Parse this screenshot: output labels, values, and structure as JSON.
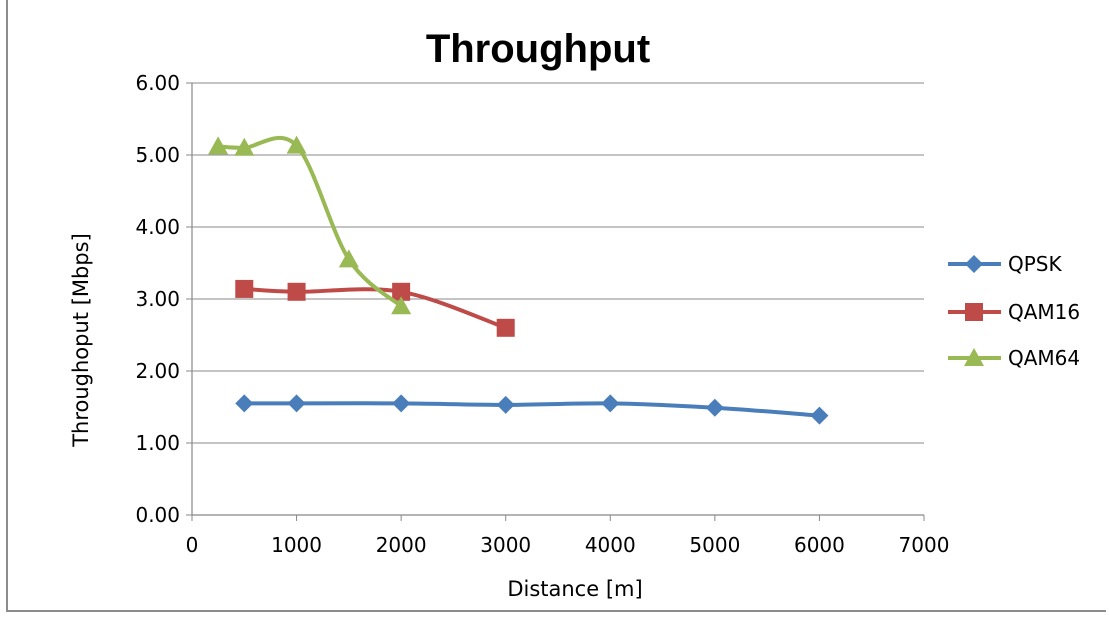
{
  "chart_data": {
    "type": "line",
    "title": "Throughput",
    "xlabel": "Distance [m]",
    "ylabel": "Throughoput  [Mbps]",
    "xlim": [
      0,
      7000
    ],
    "ylim": [
      0,
      6
    ],
    "x_ticks": [
      "0",
      "1000",
      "2000",
      "3000",
      "4000",
      "5000",
      "6000",
      "7000"
    ],
    "y_ticks": [
      "0.00",
      "1.00",
      "2.00",
      "3.00",
      "4.00",
      "5.00",
      "6.00"
    ],
    "grid": "horizontal",
    "legend_position": "right",
    "series": [
      {
        "name": "QPSK",
        "color": "#4a7ebb",
        "marker": "diamond",
        "x": [
          500,
          1000,
          2000,
          3000,
          4000,
          5000,
          6000
        ],
        "y": [
          1.55,
          1.55,
          1.55,
          1.53,
          1.55,
          1.49,
          1.38
        ]
      },
      {
        "name": "QAM16",
        "color": "#be4b48",
        "marker": "square",
        "x": [
          500,
          1000,
          2000,
          3000
        ],
        "y": [
          3.14,
          3.1,
          3.1,
          2.6
        ]
      },
      {
        "name": "QAM64",
        "color": "#98b954",
        "marker": "triangle",
        "x": [
          250,
          500,
          1000,
          1500,
          2000
        ],
        "y": [
          5.12,
          5.1,
          5.13,
          3.55,
          2.9
        ]
      }
    ]
  }
}
